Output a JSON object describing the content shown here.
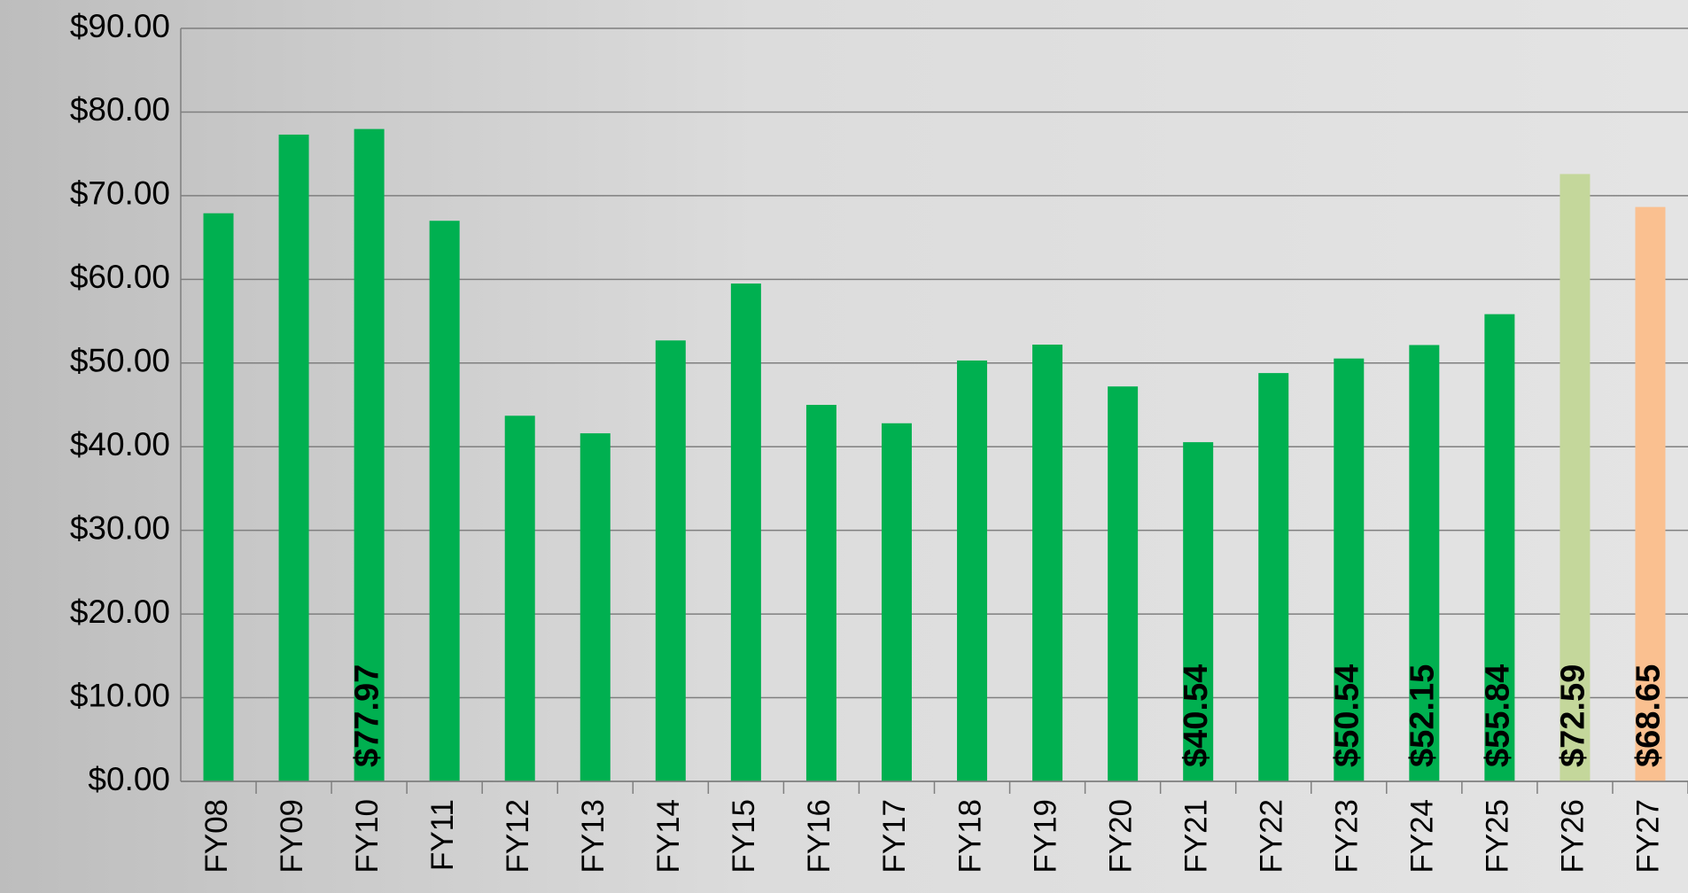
{
  "chart_data": {
    "type": "bar",
    "categories": [
      "FY08",
      "FY09",
      "FY10",
      "FY11",
      "FY12",
      "FY13",
      "FY14",
      "FY15",
      "FY16",
      "FY17",
      "FY18",
      "FY19",
      "FY20",
      "FY21",
      "FY22",
      "FY23",
      "FY24",
      "FY25",
      "FY26",
      "FY27"
    ],
    "values": [
      67.9,
      77.3,
      77.97,
      67.0,
      43.7,
      41.6,
      52.7,
      59.5,
      45.0,
      42.8,
      50.3,
      52.2,
      47.2,
      40.54,
      48.8,
      50.54,
      52.15,
      55.84,
      72.59,
      68.65
    ],
    "value_labels": [
      null,
      null,
      "$77.97",
      null,
      null,
      null,
      null,
      null,
      null,
      null,
      null,
      null,
      null,
      "$40.54",
      null,
      "$50.54",
      "$52.15",
      "$55.84",
      "$72.59",
      "$68.65"
    ],
    "colors": [
      "#00b050",
      "#00b050",
      "#00b050",
      "#00b050",
      "#00b050",
      "#00b050",
      "#00b050",
      "#00b050",
      "#00b050",
      "#00b050",
      "#00b050",
      "#00b050",
      "#00b050",
      "#00b050",
      "#00b050",
      "#00b050",
      "#00b050",
      "#00b050",
      "#c4d79b",
      "#fac090"
    ],
    "ylim": [
      0,
      90
    ],
    "yticks": [
      {
        "value": 0,
        "label": "$0.00"
      },
      {
        "value": 10,
        "label": "$10.00"
      },
      {
        "value": 20,
        "label": "$20.00"
      },
      {
        "value": 30,
        "label": "$30.00"
      },
      {
        "value": 40,
        "label": "$40.00"
      },
      {
        "value": 50,
        "label": "$50.00"
      },
      {
        "value": 60,
        "label": "$60.00"
      },
      {
        "value": 70,
        "label": "$70.00"
      },
      {
        "value": 80,
        "label": "$80.00"
      },
      {
        "value": 90,
        "label": "$90.00"
      }
    ],
    "grid": true
  }
}
